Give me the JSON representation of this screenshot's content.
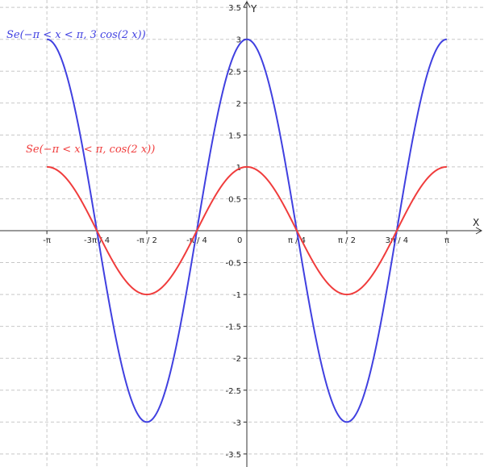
{
  "chart_data": {
    "type": "line",
    "xlabel": "X",
    "ylabel": "Y",
    "xlim": [
      -3.14159,
      3.14159
    ],
    "ylim": [
      -3.5,
      3.5
    ],
    "grid": true,
    "x_ticks": [
      {
        "value": -3.14159,
        "label": "-π"
      },
      {
        "value": -2.35619,
        "label": "-3π / 4"
      },
      {
        "value": -1.5708,
        "label": "-π / 2"
      },
      {
        "value": -0.7854,
        "label": "-π / 4"
      },
      {
        "value": 0,
        "label": "0"
      },
      {
        "value": 0.7854,
        "label": "π / 4"
      },
      {
        "value": 1.5708,
        "label": "π / 2"
      },
      {
        "value": 2.35619,
        "label": "3π / 4"
      },
      {
        "value": 3.14159,
        "label": "π"
      }
    ],
    "y_ticks": [
      {
        "value": 3.5,
        "label": "3.5"
      },
      {
        "value": 3,
        "label": "3"
      },
      {
        "value": 2.5,
        "label": "2.5"
      },
      {
        "value": 2,
        "label": "2"
      },
      {
        "value": 1.5,
        "label": "1.5"
      },
      {
        "value": 1,
        "label": "1"
      },
      {
        "value": 0.5,
        "label": "0.5"
      },
      {
        "value": -0.5,
        "label": "-0.5"
      },
      {
        "value": -1,
        "label": "-1"
      },
      {
        "value": -1.5,
        "label": "-1.5"
      },
      {
        "value": -2,
        "label": "-2"
      },
      {
        "value": -2.5,
        "label": "-2.5"
      },
      {
        "value": -3,
        "label": "-3"
      },
      {
        "value": -3.5,
        "label": "-3.5"
      }
    ],
    "x": [
      -3.14159,
      -2.74889,
      -2.35619,
      -1.9635,
      -1.5708,
      -1.1781,
      -0.7854,
      -0.3927,
      0,
      0.3927,
      0.7854,
      1.1781,
      1.5708,
      1.9635,
      2.35619,
      2.74889,
      3.14159
    ],
    "series": [
      {
        "name": "Se(−π < x < π, 3 cos(2 x))",
        "color": "#4040e0",
        "values": [
          3,
          2.121,
          0,
          -2.121,
          -3,
          -2.121,
          0,
          2.121,
          3,
          2.121,
          0,
          -2.121,
          -3,
          -2.121,
          0,
          2.121,
          3
        ]
      },
      {
        "name": "Se(−π < x < π, cos(2 x))",
        "color": "#f03c3c",
        "values": [
          1,
          0.707,
          0,
          -0.707,
          -1,
          -0.707,
          0,
          0.707,
          1,
          0.707,
          0,
          -0.707,
          -1,
          -0.707,
          0,
          0.707,
          1
        ]
      }
    ]
  }
}
